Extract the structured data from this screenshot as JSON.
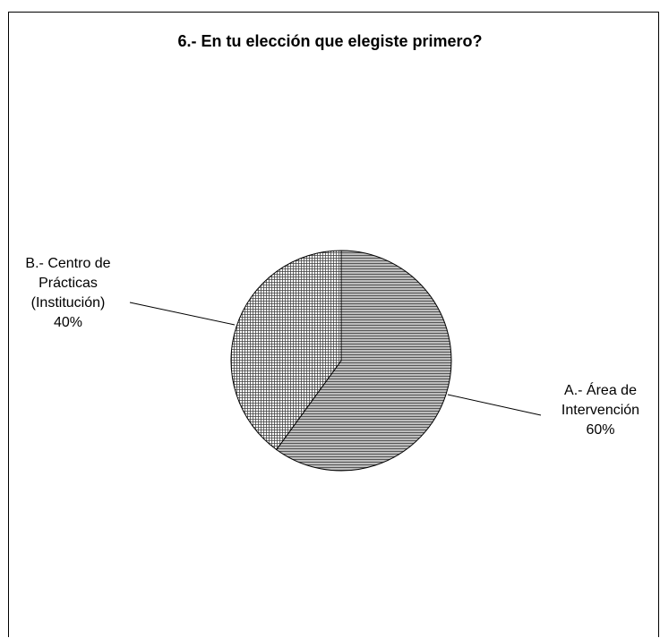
{
  "chart_data": {
    "type": "pie",
    "title": "6.- En tu elección que elegiste primero?",
    "slices": [
      {
        "label_lines": [
          "A.- Área de",
          "Intervención"
        ],
        "value": 60,
        "pct_label": "60%",
        "color": "#9a9a9a"
      },
      {
        "label_lines": [
          "B.- Centro de",
          "Prácticas",
          "(Institución)"
        ],
        "value": 40,
        "pct_label": "40%",
        "color": "#ffffff"
      }
    ],
    "legend": "none"
  }
}
